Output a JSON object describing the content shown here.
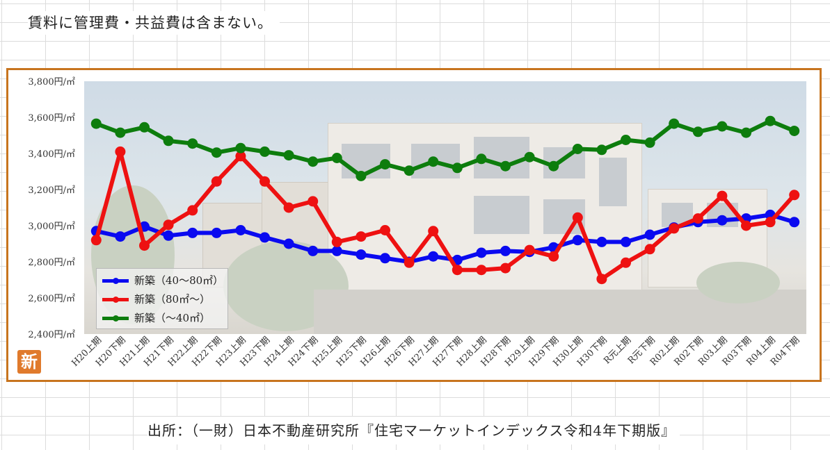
{
  "header": {
    "note": "賃料に管理費・共益費は含まない。"
  },
  "footer": {
    "source": "出所：（一財）日本不動産研究所『住宅マーケットインデックス令和4年下期版』"
  },
  "badge": {
    "text": "新"
  },
  "chart_data": {
    "type": "line",
    "categories": [
      "H20上期",
      "H20下期",
      "H21上期",
      "H21下期",
      "H22上期",
      "H22下期",
      "H23上期",
      "H23下期",
      "H24上期",
      "H24下期",
      "H25上期",
      "H25下期",
      "H26上期",
      "H26下期",
      "H27上期",
      "H27下期",
      "H28上期",
      "H28下期",
      "H29上期",
      "H29下期",
      "H30上期",
      "H30下期",
      "R元上期",
      "R元下期",
      "R02上期",
      "R02下期",
      "R03上期",
      "R03下期",
      "R04上期",
      "R04下期"
    ],
    "ylim": [
      2400,
      3800
    ],
    "yticks": [
      2400,
      2600,
      2800,
      3000,
      3200,
      3400,
      3600,
      3800
    ],
    "ytick_labels": [
      "2,400円/㎡",
      "2,600円/㎡",
      "2,800円/㎡",
      "3,000円/㎡",
      "3,200円/㎡",
      "3,400円/㎡",
      "3,600円/㎡",
      "3,800円/㎡"
    ],
    "grid": false,
    "legend_position": "bottom-left",
    "series": [
      {
        "name": "新築（40〜80㎡）",
        "color": "#0a0af0",
        "values": [
          2970,
          2940,
          2995,
          2945,
          2960,
          2960,
          2975,
          2935,
          2900,
          2860,
          2860,
          2840,
          2820,
          2800,
          2830,
          2810,
          2850,
          2860,
          2855,
          2880,
          2920,
          2910,
          2910,
          2950,
          2990,
          3020,
          3030,
          3040,
          3060,
          3020
        ]
      },
      {
        "name": "新築（80㎡〜）",
        "color": "#ee1111",
        "values": [
          2920,
          3410,
          2890,
          3005,
          3085,
          3245,
          3385,
          3245,
          3100,
          3135,
          2910,
          2940,
          2975,
          2795,
          2970,
          2755,
          2755,
          2765,
          2865,
          2830,
          3045,
          2705,
          2795,
          2870,
          2985,
          3040,
          3165,
          3000,
          3020,
          3170
        ]
      },
      {
        "name": "新築（〜40㎡）",
        "color": "#0d7d0d",
        "values": [
          3565,
          3515,
          3545,
          3470,
          3455,
          3405,
          3430,
          3410,
          3390,
          3355,
          3375,
          3275,
          3340,
          3305,
          3355,
          3320,
          3370,
          3330,
          3380,
          3330,
          3425,
          3420,
          3475,
          3460,
          3565,
          3520,
          3550,
          3515,
          3580,
          3525
        ]
      }
    ]
  }
}
